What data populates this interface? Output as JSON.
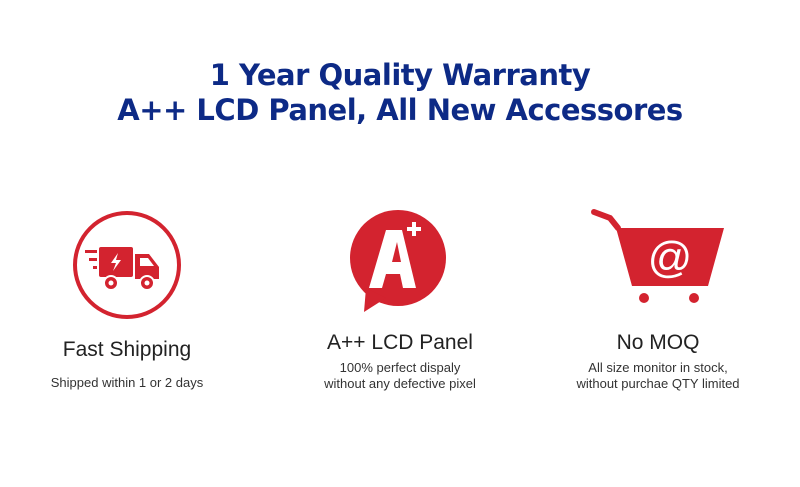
{
  "header": {
    "line1": "1 Year Quality Warranty",
    "line2": "A++ LCD Panel, All New Accessores"
  },
  "colors": {
    "accent_red": "#d3232f",
    "title_blue": "#0d2a86"
  },
  "features": [
    {
      "icon": "delivery-truck-icon",
      "title": "Fast Shipping",
      "lines": [
        "Shipped within 1 or 2 days"
      ]
    },
    {
      "icon": "a-plus-speech-bubble-icon",
      "title": "A++ LCD Panel",
      "lines": [
        "100% perfect dispaly",
        "without any defective pixel"
      ]
    },
    {
      "icon": "shopping-cart-at-icon",
      "title": "No MOQ",
      "lines": [
        "All size monitor in stock,",
        "without purchae QTY limited"
      ]
    }
  ]
}
